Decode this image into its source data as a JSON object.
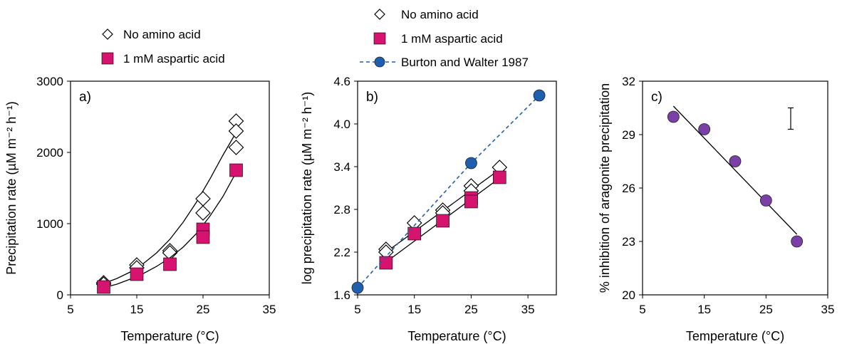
{
  "chart_data": [
    {
      "type": "scatter",
      "panel_label": "a)",
      "xlabel": "Temperature (°C)",
      "ylabel": "Precipitation rate (µM m⁻² h⁻¹)",
      "xlim": [
        5,
        35
      ],
      "ylim": [
        0,
        3000
      ],
      "xticks": [
        5,
        15,
        25,
        35
      ],
      "yticks": [
        0,
        1000,
        2000,
        3000
      ],
      "xtick_labels": [
        "5",
        "15",
        "25",
        "35"
      ],
      "ytick_labels": [
        "0",
        "1000",
        "2000",
        "3000"
      ],
      "legend_position": "top",
      "series": [
        {
          "name": "No amino acid",
          "marker": "diamond-open",
          "color": "#000000",
          "x": [
            10,
            10,
            15,
            15,
            20,
            20,
            25,
            25,
            30,
            30,
            30
          ],
          "y": [
            170,
            150,
            420,
            380,
            620,
            590,
            1350,
            1150,
            2440,
            2300,
            2070
          ],
          "fit": {
            "kind": "exponential",
            "x": [
              10,
              12,
              14,
              16,
              18,
              20,
              22,
              24,
              26,
              28,
              30
            ],
            "y": [
              160,
              230,
              320,
              440,
              590,
              780,
              1020,
              1300,
              1620,
              1960,
              2280
            ]
          }
        },
        {
          "name": "1 mM aspartic acid",
          "marker": "square",
          "color": "#D6146F",
          "x": [
            10,
            15,
            20,
            25,
            25,
            30
          ],
          "y": [
            110,
            290,
            430,
            920,
            810,
            1750
          ],
          "fit": {
            "kind": "exponential",
            "x": [
              10,
              12,
              14,
              16,
              18,
              20,
              22,
              24,
              26,
              28,
              30
            ],
            "y": [
              100,
              150,
              220,
              300,
              400,
              520,
              670,
              860,
              1100,
              1380,
              1720
            ]
          }
        }
      ]
    },
    {
      "type": "scatter",
      "panel_label": "b)",
      "xlabel": "Temperature (°C)",
      "ylabel": "log precipitation rate (µM m⁻² h⁻¹)",
      "xlim": [
        5,
        40
      ],
      "ylim": [
        1.6,
        4.6
      ],
      "xticks": [
        5,
        15,
        25,
        35
      ],
      "yticks": [
        1.6,
        2.2,
        2.8,
        3.4,
        4.0,
        4.6
      ],
      "xtick_labels": [
        "5",
        "15",
        "25",
        "35"
      ],
      "ytick_labels": [
        "1.6",
        "2.2",
        "2.8",
        "3.4",
        "4.0",
        "4.6"
      ],
      "legend_position": "top",
      "series": [
        {
          "name": "No amino acid",
          "marker": "diamond-open",
          "color": "#000000",
          "x": [
            10,
            10,
            15,
            20,
            20,
            25,
            25,
            30
          ],
          "y": [
            2.24,
            2.2,
            2.61,
            2.79,
            2.75,
            3.13,
            3.06,
            3.39
          ],
          "fit": {
            "kind": "linear",
            "x": [
              10,
              30
            ],
            "y": [
              2.2,
              3.36
            ]
          }
        },
        {
          "name": "1 mM aspartic acid",
          "marker": "square",
          "color": "#D6146F",
          "x": [
            10,
            15,
            20,
            25,
            25,
            30
          ],
          "y": [
            2.05,
            2.46,
            2.64,
            2.96,
            2.91,
            3.25
          ],
          "fit": {
            "kind": "linear",
            "x": [
              10,
              30
            ],
            "y": [
              2.06,
              3.24
            ]
          }
        },
        {
          "name": "Burton and Walter 1987",
          "marker": "circle",
          "color": "#1F5FAF",
          "line": "dashed",
          "x": [
            5,
            25,
            37
          ],
          "y": [
            1.7,
            3.45,
            4.4
          ]
        }
      ]
    },
    {
      "type": "scatter",
      "panel_label": "c)",
      "xlabel": "Temperature (°C)",
      "ylabel": "% inhibition of aragonite precipitation",
      "xlim": [
        5,
        35
      ],
      "ylim": [
        20,
        32
      ],
      "xticks": [
        5,
        15,
        25,
        35
      ],
      "yticks": [
        20,
        23,
        26,
        29,
        32
      ],
      "xtick_labels": [
        "5",
        "15",
        "25",
        "35"
      ],
      "ytick_labels": [
        "20",
        "23",
        "26",
        "29",
        "32"
      ],
      "series": [
        {
          "name": "",
          "marker": "circle",
          "color": "#7B3FA8",
          "x": [
            10,
            15,
            20,
            25,
            30
          ],
          "y": [
            30.0,
            29.3,
            27.5,
            25.3,
            23.0
          ],
          "fit": {
            "kind": "linear",
            "x": [
              10,
              30
            ],
            "y": [
              30.6,
              23.4
            ]
          }
        }
      ],
      "error_bar": {
        "x": 29,
        "low": 29.3,
        "high": 30.5
      }
    }
  ]
}
